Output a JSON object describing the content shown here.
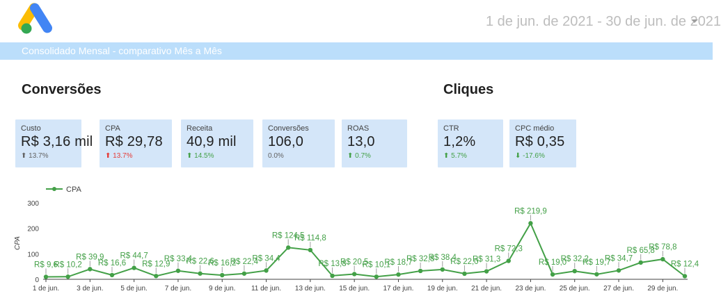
{
  "header": {
    "date_range": "1 de jun. de 2021 - 30 de jun. de 2021",
    "banner_text": "Consolidado Mensal - comparativo Mês a Mês"
  },
  "sections": {
    "conversions_title": "Conversões",
    "clicks_title": "Cliques"
  },
  "scorecards": [
    {
      "label": "Custo",
      "value": "R$ 3,16 mil",
      "change": "⬆ 13.7%",
      "tone": "neutral"
    },
    {
      "label": "CPA",
      "value": "R$ 29,78",
      "change": "⬆ 13.7%",
      "tone": "up-bad"
    },
    {
      "label": "Receita",
      "value": "40,9 mil",
      "change": "⬆ 14.5%",
      "tone": "up-good"
    },
    {
      "label": "Conversões",
      "value": "106,0",
      "change": "0.0%",
      "tone": "neutral"
    },
    {
      "label": "ROAS",
      "value": "13,0",
      "change": "⬆ 0.7%",
      "tone": "up-good"
    },
    {
      "label": "CTR",
      "value": "1,2%",
      "change": "⬆ 5.7%",
      "tone": "up-good"
    },
    {
      "label": "CPC médio",
      "value": "R$ 0,35",
      "change": "⬇ -17.6%",
      "tone": "down-good"
    }
  ],
  "colors": {
    "line": "#43a047",
    "card_bg": "#d4e6f9",
    "banner_bg": "#bbdefb"
  },
  "chart_data": {
    "type": "line",
    "legend": "CPA",
    "ylabel": "CPA",
    "ylim": [
      0,
      300
    ],
    "yticks": [
      0,
      100,
      200,
      300
    ],
    "x": [
      1,
      2,
      3,
      4,
      5,
      6,
      7,
      8,
      9,
      10,
      11,
      12,
      13,
      14,
      15,
      16,
      17,
      18,
      19,
      20,
      21,
      22,
      23,
      24,
      25,
      26,
      27,
      28,
      29,
      30
    ],
    "xtick_labels": [
      "1 de jun.",
      "3 de jun.",
      "5 de jun.",
      "7 de jun.",
      "9 de jun.",
      "11 de jun.",
      "13 de jun.",
      "15 de jun.",
      "17 de jun.",
      "19 de jun.",
      "21 de jun.",
      "23 de jun.",
      "25 de jun.",
      "27 de jun.",
      "29 de jun."
    ],
    "xtick_days": [
      1,
      3,
      5,
      7,
      9,
      11,
      13,
      15,
      17,
      19,
      21,
      23,
      25,
      27,
      29
    ],
    "series": [
      {
        "name": "CPA",
        "values": [
          9.6,
          10.2,
          39.9,
          16.6,
          44.7,
          12.9,
          33.4,
          22.6,
          16.2,
          22.4,
          34.4,
          124.5,
          114.8,
          13.8,
          20.5,
          10.1,
          18.7,
          32.8,
          38.4,
          22.0,
          31.3,
          72.3,
          219.9,
          19.0,
          32.2,
          19.7,
          34.7,
          65.8,
          78.8,
          12.4
        ],
        "labels": [
          "R$ 9,6",
          "R$ 10,2",
          "R$ 39,9",
          "R$ 16,6",
          "R$ 44,7",
          "R$ 12,9",
          "R$ 33,4",
          "R$ 22,6",
          "R$ 16,2",
          "R$ 22,4",
          "R$ 34,4",
          "R$ 124,5",
          "R$ 114,8",
          "R$ 13,8",
          "R$ 20,5",
          "R$ 10,1",
          "R$ 18,7",
          "R$ 32,8",
          "R$ 38,4",
          "R$ 22,0",
          "R$ 31,3",
          "R$ 72,3",
          "R$ 219,9",
          "R$ 19,0",
          "R$ 32,2",
          "R$ 19,7",
          "R$ 34,7",
          "R$ 65,8",
          "R$ 78,8",
          "R$ 12,4"
        ]
      }
    ]
  }
}
